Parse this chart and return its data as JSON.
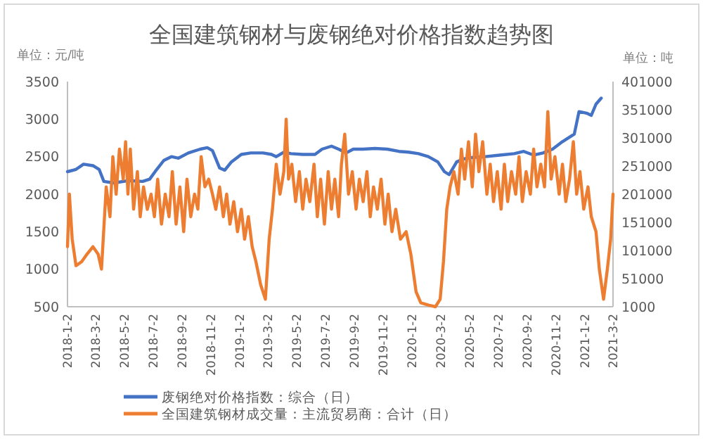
{
  "chart_data": {
    "type": "line",
    "title": "全国建筑钢材与废钢绝对价格指数趋势图",
    "ylabel": "单位：元/吨",
    "y2label": "单位：吨",
    "xlim": [
      "2018-01-02",
      "2021-03-02"
    ],
    "xticks": [
      {
        "value": "2018-01-02",
        "label": "2018-1-2"
      },
      {
        "value": "2018-03-02",
        "label": "2018-3-2"
      },
      {
        "value": "2018-05-02",
        "label": "2018-5-2"
      },
      {
        "value": "2018-07-02",
        "label": "2018-7-2"
      },
      {
        "value": "2018-09-02",
        "label": "2018-9-2"
      },
      {
        "value": "2018-11-02",
        "label": "2018-11-2"
      },
      {
        "value": "2019-01-02",
        "label": "2019-1-2"
      },
      {
        "value": "2019-03-02",
        "label": "2019-3-2"
      },
      {
        "value": "2019-05-02",
        "label": "2019-5-2"
      },
      {
        "value": "2019-07-02",
        "label": "2019-7-2"
      },
      {
        "value": "2019-09-02",
        "label": "2019-9-2"
      },
      {
        "value": "2019-11-02",
        "label": "2019-11-2"
      },
      {
        "value": "2020-01-02",
        "label": "2020-1-2"
      },
      {
        "value": "2020-03-02",
        "label": "2020-3-2"
      },
      {
        "value": "2020-05-02",
        "label": "2020-5-2"
      },
      {
        "value": "2020-07-02",
        "label": "2020-7-2"
      },
      {
        "value": "2020-09-02",
        "label": "2020-9-2"
      },
      {
        "value": "2020-11-02",
        "label": "2020-11-2"
      },
      {
        "value": "2021-01-02",
        "label": "2021-1-2"
      },
      {
        "value": "2021-03-02",
        "label": "2021-3-2"
      }
    ],
    "ylim": [
      500,
      3500
    ],
    "yticks": [
      500,
      1000,
      1500,
      2000,
      2500,
      3000,
      3500
    ],
    "y2lim": [
      1000,
      401000
    ],
    "y2ticks": [
      1000,
      51000,
      101000,
      151000,
      201000,
      251000,
      301000,
      351000,
      401000
    ],
    "grid": false,
    "legend": "bottom",
    "marker": "none",
    "line_style": "solid",
    "series": [
      {
        "name": "废钢绝对价格指数：综合（日）",
        "color": "#4472c4",
        "x": [
          "2018-01-02",
          "2018-01-20",
          "2018-02-05",
          "2018-02-25",
          "2018-03-10",
          "2018-03-20",
          "2018-04-10",
          "2018-05-10",
          "2018-06-10",
          "2018-06-25",
          "2018-07-10",
          "2018-07-25",
          "2018-08-10",
          "2018-08-25",
          "2018-09-15",
          "2018-10-10",
          "2018-10-25",
          "2018-11-05",
          "2018-11-20",
          "2018-12-01",
          "2018-12-15",
          "2019-01-05",
          "2019-01-25",
          "2019-02-20",
          "2019-03-10",
          "2019-03-20",
          "2019-04-05",
          "2019-04-20",
          "2019-05-15",
          "2019-06-10",
          "2019-06-25",
          "2019-07-15",
          "2019-07-30",
          "2019-08-15",
          "2019-08-30",
          "2019-09-20",
          "2019-10-15",
          "2019-11-10",
          "2019-12-05",
          "2019-12-25",
          "2020-01-15",
          "2020-02-05",
          "2020-02-25",
          "2020-03-10",
          "2020-03-20",
          "2020-04-05",
          "2020-04-20",
          "2020-05-10",
          "2020-06-05",
          "2020-07-05",
          "2020-08-05",
          "2020-08-25",
          "2020-09-15",
          "2020-10-05",
          "2020-10-25",
          "2020-11-15",
          "2020-12-10",
          "2020-12-20",
          "2021-01-05",
          "2021-01-15",
          "2021-01-25",
          "2021-02-05"
        ],
        "values": [
          2300,
          2330,
          2400,
          2380,
          2330,
          2170,
          2150,
          2180,
          2170,
          2200,
          2330,
          2450,
          2500,
          2480,
          2550,
          2600,
          2620,
          2580,
          2350,
          2320,
          2430,
          2530,
          2550,
          2550,
          2530,
          2500,
          2560,
          2540,
          2530,
          2530,
          2600,
          2640,
          2600,
          2550,
          2600,
          2600,
          2610,
          2600,
          2570,
          2560,
          2540,
          2500,
          2430,
          2300,
          2260,
          2430,
          2470,
          2490,
          2500,
          2520,
          2540,
          2570,
          2520,
          2550,
          2600,
          2700,
          2800,
          3100,
          3080,
          3050,
          3200,
          3280
        ]
      },
      {
        "name": "全国建筑钢材成交量：主流贸易商：合计（日）",
        "color": "#ed7d31",
        "axis": "y2",
        "x": [
          "2018-01-02",
          "2018-01-06",
          "2018-01-12",
          "2018-01-20",
          "2018-02-01",
          "2018-02-12",
          "2018-02-25",
          "2018-03-08",
          "2018-03-15",
          "2018-03-25",
          "2018-04-02",
          "2018-04-08",
          "2018-04-15",
          "2018-04-22",
          "2018-04-30",
          "2018-05-05",
          "2018-05-10",
          "2018-05-15",
          "2018-05-22",
          "2018-05-30",
          "2018-06-05",
          "2018-06-12",
          "2018-06-20",
          "2018-06-28",
          "2018-07-05",
          "2018-07-12",
          "2018-07-20",
          "2018-07-28",
          "2018-08-05",
          "2018-08-12",
          "2018-08-20",
          "2018-08-28",
          "2018-09-05",
          "2018-09-12",
          "2018-09-20",
          "2018-09-28",
          "2018-10-05",
          "2018-10-12",
          "2018-10-20",
          "2018-10-28",
          "2018-11-05",
          "2018-11-12",
          "2018-11-20",
          "2018-11-28",
          "2018-12-05",
          "2018-12-12",
          "2018-12-20",
          "2018-12-28",
          "2019-01-05",
          "2019-01-12",
          "2019-01-20",
          "2019-01-28",
          "2019-02-05",
          "2019-02-15",
          "2019-02-25",
          "2019-03-05",
          "2019-03-12",
          "2019-03-20",
          "2019-03-28",
          "2019-04-05",
          "2019-04-10",
          "2019-04-15",
          "2019-04-22",
          "2019-04-30",
          "2019-05-08",
          "2019-05-15",
          "2019-05-22",
          "2019-05-30",
          "2019-06-08",
          "2019-06-15",
          "2019-06-22",
          "2019-06-30",
          "2019-07-08",
          "2019-07-15",
          "2019-07-22",
          "2019-07-30",
          "2019-08-05",
          "2019-08-12",
          "2019-08-20",
          "2019-08-28",
          "2019-09-05",
          "2019-09-12",
          "2019-09-20",
          "2019-09-28",
          "2019-10-05",
          "2019-10-12",
          "2019-10-20",
          "2019-10-28",
          "2019-11-05",
          "2019-11-12",
          "2019-11-20",
          "2019-11-28",
          "2019-12-08",
          "2019-12-20",
          "2019-12-30",
          "2020-01-10",
          "2020-01-20",
          "2020-02-05",
          "2020-02-20",
          "2020-03-01",
          "2020-03-08",
          "2020-03-15",
          "2020-03-22",
          "2020-03-30",
          "2020-04-08",
          "2020-04-15",
          "2020-04-22",
          "2020-04-30",
          "2020-05-08",
          "2020-05-15",
          "2020-05-22",
          "2020-05-30",
          "2020-06-08",
          "2020-06-15",
          "2020-06-22",
          "2020-06-30",
          "2020-07-08",
          "2020-07-15",
          "2020-07-22",
          "2020-07-30",
          "2020-08-08",
          "2020-08-15",
          "2020-08-22",
          "2020-08-30",
          "2020-09-08",
          "2020-09-15",
          "2020-09-22",
          "2020-09-30",
          "2020-10-08",
          "2020-10-15",
          "2020-10-22",
          "2020-10-30",
          "2020-11-08",
          "2020-11-15",
          "2020-11-22",
          "2020-11-30",
          "2020-12-08",
          "2020-12-15",
          "2020-12-22",
          "2020-12-30",
          "2021-01-08",
          "2021-01-15",
          "2021-01-25",
          "2021-02-01",
          "2021-02-10",
          "2021-02-18",
          "2021-02-25",
          "2021-03-02"
        ],
        "values": [
          107700,
          201000,
          121000,
          74000,
          81000,
          94000,
          107700,
          94000,
          67700,
          214000,
          161000,
          267700,
          201000,
          281000,
          227700,
          294300,
          201000,
          281000,
          174300,
          241000,
          161000,
          214000,
          174000,
          201000,
          161000,
          227700,
          147700,
          201000,
          161000,
          241000,
          147700,
          214000,
          134300,
          227700,
          161000,
          201000,
          174300,
          267700,
          214000,
          227700,
          201000,
          174000,
          214000,
          161000,
          201000,
          147700,
          187700,
          134300,
          174300,
          121000,
          161000,
          107700,
          81000,
          40000,
          14300,
          121000,
          174300,
          254300,
          201000,
          241000,
          334300,
          227700,
          254300,
          187700,
          241000,
          174300,
          227700,
          187700,
          254300,
          161000,
          227700,
          147700,
          241000,
          174300,
          227700,
          161000,
          254300,
          307700,
          201000,
          241000,
          174300,
          227700,
          187700,
          241000,
          161000,
          214000,
          174300,
          227700,
          147700,
          201000,
          134300,
          174300,
          121000,
          134300,
          94300,
          27700,
          8000,
          4000,
          1000,
          14300,
          81000,
          174300,
          214000,
          241000,
          201000,
          281000,
          227700,
          294300,
          214000,
          307700,
          241000,
          294300,
          201000,
          254300,
          187700,
          241000,
          174300,
          254300,
          187700,
          241000,
          201000,
          267700,
          187700,
          241000,
          201000,
          281000,
          214000,
          254300,
          214000,
          347700,
          227700,
          267700,
          201000,
          254300,
          187700,
          227700,
          294300,
          201000,
          241000,
          174300,
          214000,
          161000,
          134300,
          67700,
          14300,
          67700,
          121000,
          201000
        ]
      }
    ]
  }
}
